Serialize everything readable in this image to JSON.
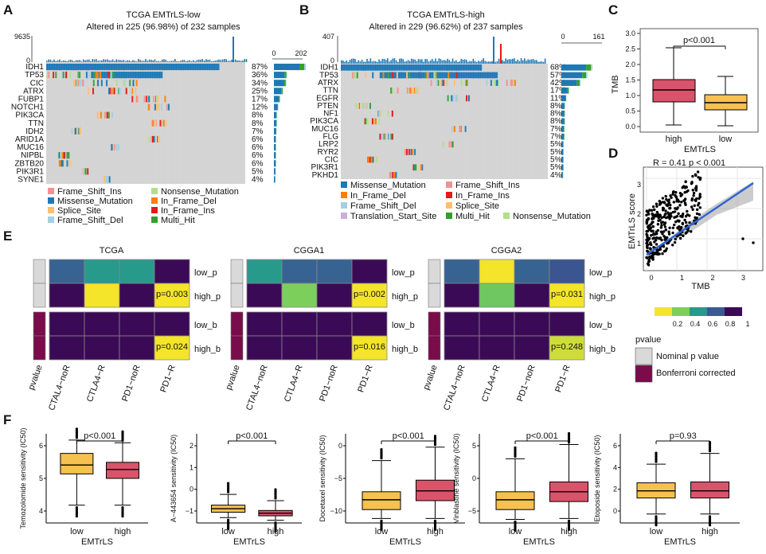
{
  "figure": {
    "panel_letters": [
      "A",
      "B",
      "C",
      "D",
      "E",
      "F"
    ]
  },
  "colors": {
    "frame_shift_ins": "#f29191",
    "missense": "#1f78b4",
    "splice": "#fdbf6f",
    "frame_shift_del": "#a6cee3",
    "nonsense": "#b2df8a",
    "in_frame_del": "#ff7f00",
    "in_frame_ins": "#e31a1c",
    "multi_hit": "#33a02c",
    "translation_start": "#cab2d6",
    "grey": "#d3d3d3",
    "high": "#d9546b",
    "low": "#f6c14e",
    "nominal": "#d9d9d9",
    "bonferroni": "#7a0c4b"
  },
  "panelA": {
    "title1": "TCGA EMTrLS-low",
    "title2": "Altered in 225 (96.98%) of 232 samples",
    "tmb_max": "9635",
    "axis_min": "0",
    "axis_max": "202",
    "genes": [
      "IDH1",
      "TP53",
      "CIC",
      "ATRX",
      "FUBP1",
      "NOTCH1",
      "PIK3CA",
      "TTN",
      "IDH2",
      "ARID1A",
      "MUC16",
      "NIPBL",
      "ZBTB20",
      "PIK3R1",
      "SYNE1"
    ],
    "pcts": [
      "87%",
      "36%",
      "34%",
      "25%",
      "17%",
      "12%",
      "8%",
      "8%",
      "7%",
      "6%",
      "6%",
      "6%",
      "6%",
      "5%",
      "4%"
    ],
    "legend": [
      "Frame_Shift_Ins",
      "Nonsense_Mutation",
      "Missense_Mutation",
      "In_Frame_Del",
      "Splice_Site",
      "In_Frame_Ins",
      "Frame_Shift_Del",
      "Multi_Hit"
    ]
  },
  "panelB": {
    "title1": "TCGA EMTrLS-high",
    "title2": "Altered in 229 (96.62%) of 237 samples",
    "tmb_max": "407",
    "axis_min": "0",
    "axis_max": "161",
    "genes": [
      "IDH1",
      "TP53",
      "ATRX",
      "TTN",
      "EGFR",
      "PTEN",
      "NF1",
      "PIK3CA",
      "MUC16",
      "FLG",
      "LRP2",
      "RYR2",
      "CIC",
      "PIK3R1",
      "PKHD1"
    ],
    "pcts": [
      "68%",
      "57%",
      "42%",
      "17%",
      "11%",
      "8%",
      "8%",
      "8%",
      "7%",
      "7%",
      "5%",
      "5%",
      "5%",
      "5%",
      "4%"
    ],
    "legend": [
      "Missense_Mutation",
      "Frame_Shift_Ins",
      "In_Frame_Del",
      "In_Frame_Ins",
      "Frame_Shift_Del",
      "Splice_Site",
      "Translation_Start_Site",
      "Multi_Hit",
      "Nonsense_Mutation"
    ]
  },
  "panelC": {
    "pval": "p<0.001",
    "ylabel": "TMB",
    "xlabel": "EMTrLS",
    "groups": [
      "high",
      "low"
    ],
    "yticks": [
      "0.0",
      "0.5",
      "1.0",
      "1.5",
      "2.0",
      "2.5",
      "3.0"
    ]
  },
  "panelD": {
    "stats": "R = 0.41  p < 0.001",
    "xlabel": "TMB",
    "ylabel": "EMTrLS score",
    "xticks": [
      "0",
      "1",
      "2",
      "3"
    ],
    "yticks": [
      "1",
      "2",
      "3"
    ]
  },
  "legendE": {
    "scale_ticks": [
      "0.2",
      "0.4",
      "0.6",
      "0.8",
      "1"
    ],
    "title": "pvalue",
    "items": [
      "Nominal p value",
      "Bonferroni corrected"
    ]
  },
  "panelE": {
    "columns": [
      "CTAL4−noR",
      "CTLA4−R",
      "PD1−noR",
      "PD1−R"
    ],
    "first_col_label": "pvalue",
    "row_labels": [
      "low_p",
      "high_p",
      "low_b",
      "high_b"
    ],
    "heatmaps": [
      {
        "title": "TCGA",
        "cells": [
          [
            0.68,
            0.55,
            0.55,
            1
          ],
          [
            1,
            0.05,
            1,
            0.003
          ],
          [
            1,
            1,
            1,
            1
          ],
          [
            1,
            1,
            1,
            0.024
          ]
        ],
        "ann1": "p=0.003",
        "ann2": "p=0.024"
      },
      {
        "title": "CGGA1",
        "cells": [
          [
            0.55,
            0.68,
            0.68,
            1
          ],
          [
            1,
            0.35,
            1,
            0.002
          ],
          [
            1,
            1,
            1,
            1
          ],
          [
            1,
            1,
            1,
            0.016
          ]
        ],
        "ann1": "p=0.002",
        "ann2": "p=0.016"
      },
      {
        "title": "CGGA2",
        "cells": [
          [
            0.68,
            0.05,
            0.68,
            0.72
          ],
          [
            1,
            0.38,
            1,
            0.031
          ],
          [
            1,
            1,
            1,
            1
          ],
          [
            1,
            1,
            1,
            0.248
          ]
        ],
        "ann1": "p=0.031",
        "ann2": "p=0.248"
      }
    ]
  },
  "panelF": {
    "xlabel": "EMTrLS",
    "plots": [
      {
        "ylabel": "Temozolomide sensitivity (IC50)",
        "pval": "p<0.001",
        "groups": [
          "low",
          "high"
        ],
        "yticks": [
          "4",
          "5",
          "6"
        ]
      },
      {
        "ylabel": "A−443654 sensitivity (IC50)",
        "pval": "p<0.001",
        "groups": [
          "low",
          "high"
        ],
        "yticks": [
          "−1",
          "0",
          "1",
          "2"
        ]
      },
      {
        "ylabel": "Docetaxel sensitivity (IC50)",
        "pval": "p<0.001",
        "groups": [
          "low",
          "high"
        ],
        "yticks": [
          "−10",
          "−5",
          "0"
        ]
      },
      {
        "ylabel": "Vinblastine sensitivity (IC50)",
        "pval": "p<0.001",
        "groups": [
          "low",
          "high"
        ],
        "yticks": [
          "−5",
          "0",
          "5"
        ]
      },
      {
        "ylabel": "Etoposide sensitivity (IC50)",
        "pval": "p=0.93",
        "groups": [
          "low",
          "high"
        ],
        "yticks": [
          "0",
          "2",
          "4",
          "6"
        ]
      }
    ]
  }
}
